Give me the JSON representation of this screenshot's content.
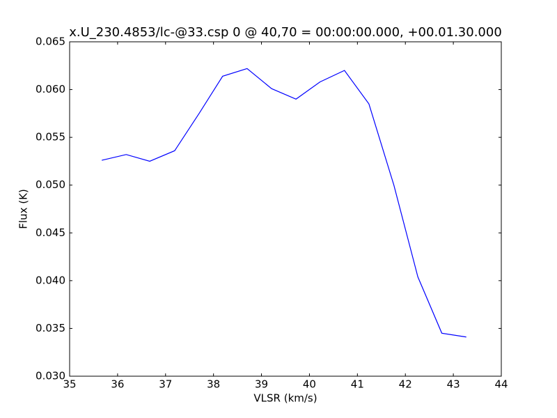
{
  "chart_data": {
    "type": "line",
    "title": "x.U_230.4853/lc-@33.csp 0 @ 40,70 = 00:00:00.000, +00.01.30.000",
    "xlabel": "VLSR (km/s)",
    "ylabel": "Flux (K)",
    "x": [
      35.67,
      36.18,
      36.67,
      37.19,
      37.7,
      38.19,
      38.7,
      39.21,
      39.72,
      40.22,
      40.73,
      41.24,
      41.76,
      42.26,
      42.76,
      43.27
    ],
    "series": [
      {
        "name": "Flux",
        "color": "#0000ff",
        "values": [
          0.0526,
          0.0532,
          0.0525,
          0.0536,
          0.0575,
          0.0614,
          0.0622,
          0.0601,
          0.059,
          0.0608,
          0.062,
          0.0585,
          0.05,
          0.0404,
          0.0345,
          0.0341
        ]
      }
    ],
    "xlim": [
      35,
      44
    ],
    "xticks": [
      35,
      36,
      37,
      38,
      39,
      40,
      41,
      42,
      43,
      44
    ],
    "ylim": [
      0.03,
      0.065
    ],
    "yticks": [
      {
        "value": 0.03,
        "label": "0.030"
      },
      {
        "value": 0.035,
        "label": "0.035"
      },
      {
        "value": 0.04,
        "label": "0.040"
      },
      {
        "value": 0.045,
        "label": "0.045"
      },
      {
        "value": 0.05,
        "label": "0.050"
      },
      {
        "value": 0.055,
        "label": "0.055"
      },
      {
        "value": 0.06,
        "label": "0.060"
      },
      {
        "value": 0.065,
        "label": "0.065"
      }
    ],
    "grid": false
  }
}
